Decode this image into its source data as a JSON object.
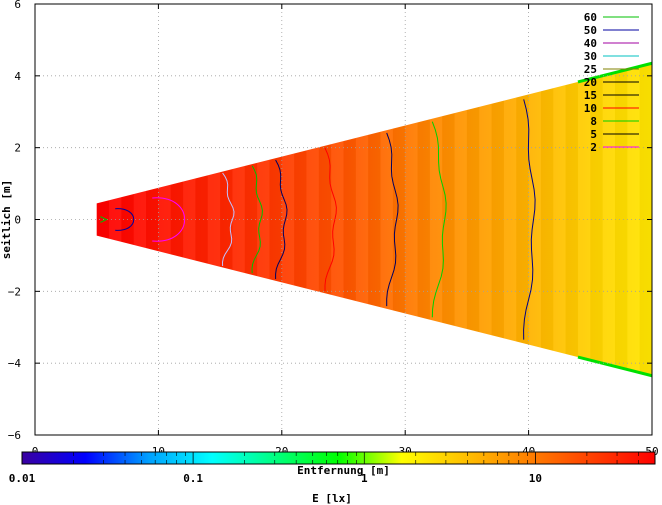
{
  "chart_data": {
    "type": "heatmap",
    "xlabel": "Entfernung [m]",
    "ylabel": "seitlich [m]",
    "xlim": [
      0,
      50
    ],
    "ylim": [
      -6,
      6
    ],
    "xticks": [
      0,
      10,
      20,
      30,
      40,
      50
    ],
    "yticks": [
      -6,
      -4,
      -2,
      0,
      2,
      4,
      6
    ],
    "grid": true,
    "legend_position": "top-right",
    "legend_title": "",
    "contours": [
      {
        "level": "60",
        "color": "#00c000",
        "xmin": 5.0
      },
      {
        "level": "50",
        "color": "#0000a0",
        "xmin": 5.0
      },
      {
        "level": "40",
        "color": "#a000a0",
        "xmin": 5.0
      },
      {
        "level": "30",
        "color": "#00c0c0",
        "xmin": 5.0
      },
      {
        "level": "25",
        "color": "#808000",
        "xmin": 5.0
      },
      {
        "level": "20",
        "color": "#000000",
        "x": [
          7.0,
          8.0
        ],
        "y": [
          0,
          0
        ]
      },
      {
        "level": "15",
        "color": "#000000",
        "x": 8.0
      },
      {
        "level": "10",
        "color": "#ff0000",
        "x": 12.5
      },
      {
        "level": "8",
        "color": "#00d000",
        "x": 19.5
      },
      {
        "level": "5",
        "color": "#000000",
        "x": 32.0
      },
      {
        "level": "2",
        "color": "#ff00ff",
        "x": 40.0
      }
    ],
    "beam": {
      "x_start": 5,
      "x_end": 50,
      "half_width_start": 0.45,
      "half_width_end": 4.35
    },
    "colorbar": {
      "scale": "log",
      "range": [
        0.01,
        50
      ],
      "ticks": [
        "0.01",
        "0.1",
        "1",
        "10"
      ],
      "label": "E [lx]",
      "colors": [
        "#3a00a0",
        "#0000ff",
        "#00a0ff",
        "#00ffff",
        "#00ff80",
        "#00ff00",
        "#ffff00",
        "#ffc000",
        "#ff8000",
        "#ff4000",
        "#ff0000"
      ]
    }
  },
  "legend_levels": [
    "60",
    "50",
    "40",
    "30",
    "25",
    "20",
    "15",
    "10",
    "8",
    "5",
    "2"
  ],
  "legend_colors": [
    "#00c000",
    "#0000a0",
    "#a000a0",
    "#00c0c0",
    "#808000",
    "#000000",
    "#000000",
    "#ff0000",
    "#00d000",
    "#000000",
    "#ff00ff"
  ],
  "axis_text": {
    "xlabel": "Entfernung [m]",
    "ylabel": "seitlich [m]",
    "colorbar_label": "E [lx]"
  }
}
